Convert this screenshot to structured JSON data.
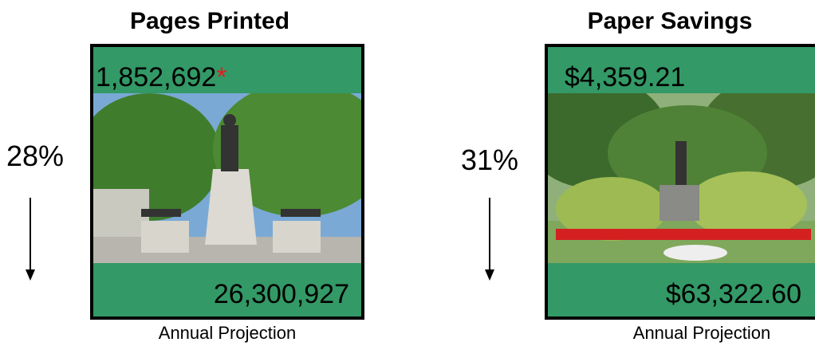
{
  "panels": [
    {
      "title": "Pages Printed",
      "top_value": "1,852,692",
      "asterisk": "*",
      "bottom_value": "26,300,927",
      "percent": "28%",
      "caption": "Annual Projection"
    },
    {
      "title": "Paper Savings",
      "top_value": "$4,359.21",
      "bottom_value": "$63,322.60",
      "percent": "31%",
      "caption": "Annual Projection"
    }
  ]
}
